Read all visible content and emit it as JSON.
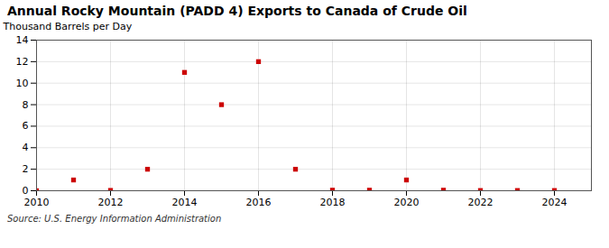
{
  "chart_data": {
    "type": "scatter",
    "title": "Annual Rocky Mountain (PADD 4) Exports to Canada of Crude Oil",
    "ylabel": "Thousand Barrels per Day",
    "source": "Source: U.S. Energy Information Administration",
    "x": [
      2010,
      2011,
      2012,
      2013,
      2014,
      2015,
      2016,
      2017,
      2018,
      2019,
      2020,
      2021,
      2022,
      2023,
      2024
    ],
    "values": [
      0.0,
      1.0,
      0.03,
      2.0,
      11.0,
      8.0,
      12.0,
      2.0,
      0.05,
      0.05,
      1.0,
      0.05,
      0.02,
      0.02,
      0.02
    ],
    "color": "#cc0000",
    "marker": "square",
    "xlim": [
      2010,
      2025
    ],
    "ylim": [
      0,
      14
    ],
    "xticks": [
      2010,
      2012,
      2014,
      2016,
      2018,
      2020,
      2022,
      2024
    ],
    "yticks": [
      0,
      2,
      4,
      6,
      8,
      10,
      12,
      14
    ],
    "grid": true
  }
}
